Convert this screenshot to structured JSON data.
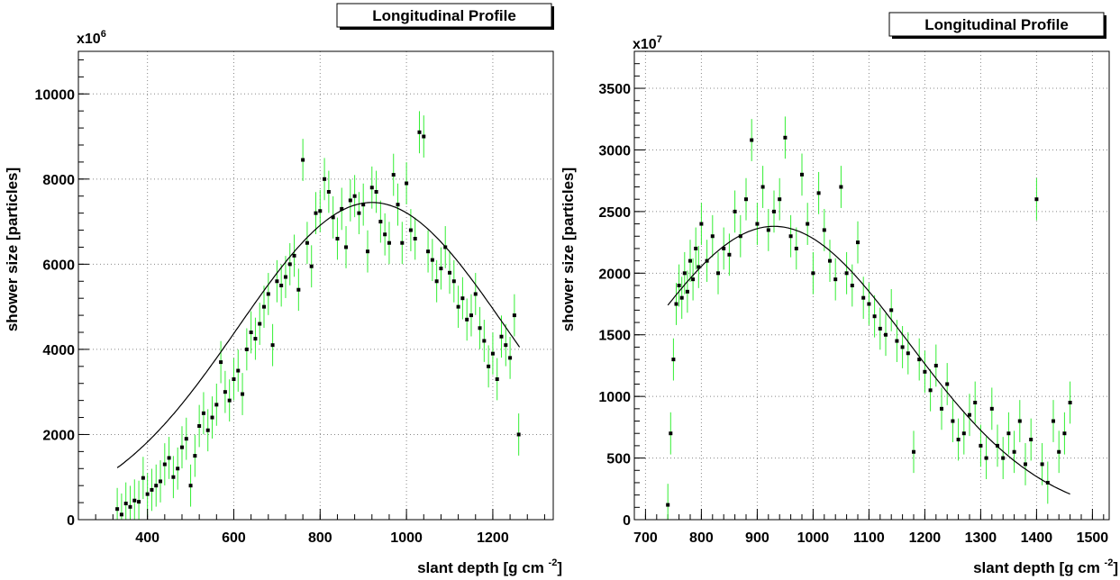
{
  "chart_data": [
    {
      "type": "scatter",
      "title": "Longitudinal Profile",
      "xlabel": "slant depth [g cm",
      "xlabel_exp": "-2",
      "xlabel_end": "]",
      "ylabel": "shower size [particles]",
      "y_multiplier": "x10",
      "y_multiplier_exp": "6",
      "xlim": [
        240,
        1340
      ],
      "ylim": [
        0,
        11000
      ],
      "xticks": [
        400,
        600,
        800,
        1000,
        1200
      ],
      "yticks": [
        0,
        2000,
        4000,
        6000,
        8000,
        10000
      ],
      "grid": true,
      "marker_color": "#000000",
      "errorbar_color": "#33ee33",
      "fit_color": "#000000",
      "fit": {
        "peak_x": 920,
        "peak_y": 7450,
        "width": 310,
        "x_range": [
          330,
          1262
        ]
      },
      "x": [
        330,
        340,
        350,
        360,
        370,
        380,
        390,
        400,
        410,
        420,
        430,
        440,
        450,
        460,
        470,
        480,
        490,
        500,
        510,
        520,
        530,
        540,
        550,
        560,
        570,
        580,
        590,
        600,
        610,
        620,
        630,
        640,
        650,
        660,
        670,
        680,
        690,
        700,
        710,
        720,
        730,
        740,
        750,
        760,
        770,
        780,
        790,
        800,
        810,
        820,
        830,
        840,
        850,
        860,
        870,
        880,
        890,
        900,
        910,
        920,
        930,
        940,
        950,
        960,
        970,
        980,
        990,
        1000,
        1010,
        1020,
        1030,
        1040,
        1050,
        1060,
        1070,
        1080,
        1090,
        1100,
        1110,
        1120,
        1130,
        1140,
        1150,
        1160,
        1170,
        1180,
        1190,
        1200,
        1210,
        1220,
        1230,
        1240,
        1250,
        1260
      ],
      "y": [
        250,
        120,
        380,
        300,
        450,
        420,
        980,
        600,
        700,
        800,
        900,
        1300,
        1450,
        1000,
        1200,
        1700,
        1900,
        800,
        1500,
        2200,
        2500,
        2100,
        2400,
        2700,
        3700,
        3000,
        2800,
        3300,
        3500,
        2950,
        4000,
        4400,
        4250,
        4600,
        5000,
        5300,
        4100,
        5600,
        5500,
        5700,
        6000,
        6200,
        5400,
        8450,
        6500,
        5950,
        7200,
        7250,
        8000,
        7700,
        7100,
        6600,
        7300,
        6400,
        7500,
        7600,
        7200,
        7400,
        6300,
        7800,
        7700,
        7000,
        6700,
        6500,
        8100,
        7400,
        6500,
        7900,
        6800,
        6600,
        9100,
        9000,
        6300,
        6100,
        5600,
        5900,
        6400,
        5800,
        5600,
        5000,
        5200,
        4700,
        4800,
        5300,
        4500,
        4200,
        3600,
        3900,
        3300,
        4300,
        4100,
        3800,
        4800,
        2000
      ]
    },
    {
      "type": "scatter",
      "title": "Longitudinal Profile",
      "xlabel": "slant depth [g cm",
      "xlabel_exp": "-2",
      "xlabel_end": "]",
      "ylabel": "shower size [particles]",
      "y_multiplier": "x10",
      "y_multiplier_exp": "7",
      "xlim": [
        680,
        1530
      ],
      "ylim": [
        0,
        3800
      ],
      "xticks": [
        700,
        800,
        900,
        1000,
        1100,
        1200,
        1300,
        1400,
        1500
      ],
      "yticks": [
        0,
        500,
        1000,
        1500,
        2000,
        2500,
        3000,
        3500
      ],
      "grid": true,
      "marker_color": "#000000",
      "errorbar_color": "#33ee33",
      "fit_color": "#000000",
      "fit": {
        "peak_x": 930,
        "peak_y": 2380,
        "width": 240,
        "x_range": [
          740,
          1460
        ]
      },
      "x": [
        740,
        745,
        750,
        755,
        760,
        765,
        770,
        775,
        780,
        785,
        790,
        795,
        800,
        810,
        820,
        830,
        840,
        850,
        860,
        870,
        880,
        890,
        900,
        910,
        920,
        930,
        940,
        950,
        960,
        970,
        980,
        990,
        1000,
        1010,
        1020,
        1030,
        1040,
        1050,
        1060,
        1070,
        1080,
        1090,
        1100,
        1110,
        1120,
        1130,
        1140,
        1150,
        1160,
        1170,
        1180,
        1190,
        1200,
        1210,
        1220,
        1230,
        1240,
        1250,
        1260,
        1270,
        1280,
        1290,
        1300,
        1310,
        1320,
        1330,
        1340,
        1350,
        1360,
        1370,
        1380,
        1390,
        1400,
        1410,
        1420,
        1430,
        1440,
        1450,
        1460
      ],
      "y": [
        120,
        700,
        1300,
        1750,
        1900,
        1800,
        2000,
        1850,
        2100,
        1950,
        2200,
        2050,
        2400,
        2100,
        2300,
        2000,
        2200,
        2150,
        2500,
        2300,
        2600,
        3080,
        2400,
        2700,
        2350,
        2500,
        2600,
        3100,
        2300,
        2200,
        2800,
        2400,
        2000,
        2650,
        2350,
        2100,
        1950,
        2700,
        2000,
        1900,
        2250,
        1800,
        1750,
        1650,
        1550,
        1500,
        1700,
        1450,
        1400,
        1350,
        550,
        1300,
        1200,
        1050,
        1250,
        900,
        1100,
        800,
        650,
        700,
        850,
        950,
        600,
        500,
        900,
        600,
        500,
        700,
        550,
        800,
        450,
        650,
        2600,
        450,
        300,
        800,
        550,
        700,
        950
      ]
    }
  ]
}
